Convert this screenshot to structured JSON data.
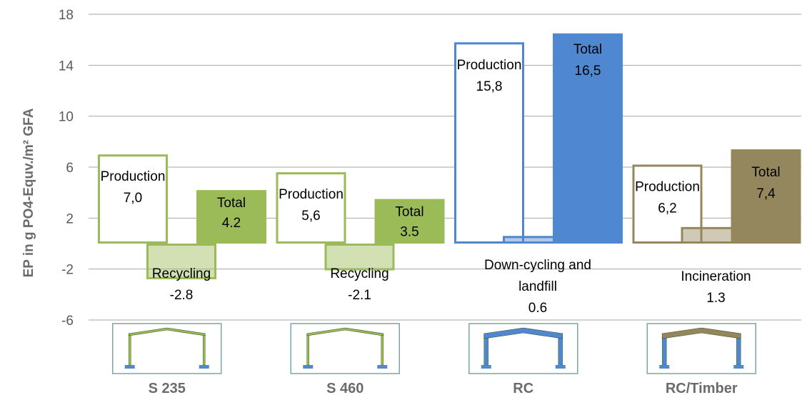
{
  "chart_data": {
    "type": "bar",
    "ylabel": "EP in g PO4-Equv./m² GFA",
    "ylim": [
      -6,
      18
    ],
    "yticks": [
      -6,
      -2,
      2,
      6,
      10,
      14,
      18
    ],
    "ytick_labels": [
      "-6",
      "-2",
      "2",
      "6",
      "10",
      "14",
      "18"
    ],
    "grid": true,
    "categories": [
      "S 235",
      "S 460",
      "RC",
      "RC/Timber"
    ],
    "groups": [
      {
        "category": "S 235",
        "color": "#9bbb59",
        "icon": "steel-frame-icon",
        "bars": [
          {
            "kind": "production",
            "value": 7.0,
            "label_name": "Production",
            "label_value": "7,0"
          },
          {
            "kind": "end-of-life",
            "value": -2.8,
            "label_name": "Recycling",
            "label_value": "-2.8"
          },
          {
            "kind": "total",
            "value": 4.2,
            "label_name": "Total",
            "label_value": "4.2"
          }
        ]
      },
      {
        "category": "S 460",
        "color": "#9bbb59",
        "icon": "steel-frame-icon",
        "bars": [
          {
            "kind": "production",
            "value": 5.6,
            "label_name": "Production",
            "label_value": "5,6"
          },
          {
            "kind": "end-of-life",
            "value": -2.1,
            "label_name": "Recycling",
            "label_value": "-2.1"
          },
          {
            "kind": "total",
            "value": 3.5,
            "label_name": "Total",
            "label_value": "3.5"
          }
        ]
      },
      {
        "category": "RC",
        "color": "#4f88d0",
        "icon": "concrete-frame-icon",
        "bars": [
          {
            "kind": "production",
            "value": 15.8,
            "label_name": "Production",
            "label_value": "15,8"
          },
          {
            "kind": "end-of-life",
            "value": 0.6,
            "label_name": "Down-cycling and landfill",
            "label_value": "0.6"
          },
          {
            "kind": "total",
            "value": 16.5,
            "label_name": "Total",
            "label_value": "16,5"
          }
        ]
      },
      {
        "category": "RC/Timber",
        "color": "#94875e",
        "icon": "timber-roof-frame-icon",
        "bars": [
          {
            "kind": "production",
            "value": 6.2,
            "label_name": "Production",
            "label_value": "6,2"
          },
          {
            "kind": "end-of-life",
            "value": 1.3,
            "label_name": "Incineration",
            "label_value": "1.3"
          },
          {
            "kind": "total",
            "value": 7.4,
            "label_name": "Total",
            "label_value": "7,4"
          }
        ]
      }
    ]
  }
}
